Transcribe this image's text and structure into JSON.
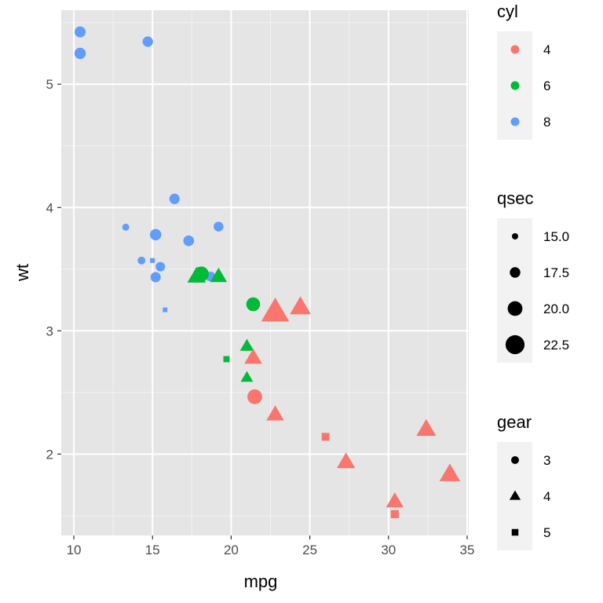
{
  "chart_data": {
    "type": "scatter",
    "xlabel": "mpg",
    "ylabel": "wt",
    "xlim": [
      9.2,
      35.1
    ],
    "ylim": [
      1.34,
      5.6
    ],
    "x_ticks": [
      10,
      15,
      20,
      25,
      30,
      35
    ],
    "y_ticks": [
      2,
      3,
      4,
      5
    ],
    "panel_background": "#e5e5e5",
    "grid": true,
    "legend_position": "right",
    "legends": [
      {
        "title": "cyl",
        "type": "color",
        "entries": [
          {
            "label": "4",
            "color": "#f8766d"
          },
          {
            "label": "6",
            "color": "#00ba38"
          },
          {
            "label": "8",
            "color": "#619cff"
          }
        ]
      },
      {
        "title": "qsec",
        "type": "size",
        "entries": [
          {
            "label": "15.0",
            "value": 15.0
          },
          {
            "label": "17.5",
            "value": 17.5
          },
          {
            "label": "20.0",
            "value": 20.0
          },
          {
            "label": "22.5",
            "value": 22.5
          }
        ]
      },
      {
        "title": "gear",
        "type": "shape",
        "entries": [
          {
            "label": "3",
            "shape": "circle"
          },
          {
            "label": "4",
            "shape": "triangle"
          },
          {
            "label": "5",
            "shape": "square"
          }
        ]
      }
    ],
    "points": [
      {
        "mpg": 21.0,
        "wt": 2.62,
        "cyl": 6,
        "gear": 4,
        "qsec": 16.46
      },
      {
        "mpg": 21.0,
        "wt": 2.875,
        "cyl": 6,
        "gear": 4,
        "qsec": 17.02
      },
      {
        "mpg": 22.8,
        "wt": 2.32,
        "cyl": 4,
        "gear": 4,
        "qsec": 18.61
      },
      {
        "mpg": 21.4,
        "wt": 3.215,
        "cyl": 6,
        "gear": 3,
        "qsec": 19.44
      },
      {
        "mpg": 18.7,
        "wt": 3.44,
        "cyl": 8,
        "gear": 3,
        "qsec": 17.02
      },
      {
        "mpg": 18.1,
        "wt": 3.46,
        "cyl": 6,
        "gear": 3,
        "qsec": 20.22
      },
      {
        "mpg": 14.3,
        "wt": 3.57,
        "cyl": 8,
        "gear": 3,
        "qsec": 15.84
      },
      {
        "mpg": 24.4,
        "wt": 3.19,
        "cyl": 4,
        "gear": 4,
        "qsec": 20.0
      },
      {
        "mpg": 22.8,
        "wt": 3.15,
        "cyl": 4,
        "gear": 4,
        "qsec": 22.9
      },
      {
        "mpg": 19.2,
        "wt": 3.44,
        "cyl": 6,
        "gear": 4,
        "qsec": 18.3
      },
      {
        "mpg": 17.8,
        "wt": 3.44,
        "cyl": 6,
        "gear": 4,
        "qsec": 18.9
      },
      {
        "mpg": 16.4,
        "wt": 4.07,
        "cyl": 8,
        "gear": 3,
        "qsec": 17.4
      },
      {
        "mpg": 17.3,
        "wt": 3.73,
        "cyl": 8,
        "gear": 3,
        "qsec": 17.6
      },
      {
        "mpg": 15.2,
        "wt": 3.78,
        "cyl": 8,
        "gear": 3,
        "qsec": 18.0
      },
      {
        "mpg": 10.4,
        "wt": 5.25,
        "cyl": 8,
        "gear": 3,
        "qsec": 17.98
      },
      {
        "mpg": 10.4,
        "wt": 5.424,
        "cyl": 8,
        "gear": 3,
        "qsec": 17.82
      },
      {
        "mpg": 14.7,
        "wt": 5.345,
        "cyl": 8,
        "gear": 3,
        "qsec": 17.42
      },
      {
        "mpg": 32.4,
        "wt": 2.2,
        "cyl": 4,
        "gear": 4,
        "qsec": 19.47
      },
      {
        "mpg": 30.4,
        "wt": 1.615,
        "cyl": 4,
        "gear": 4,
        "qsec": 18.52
      },
      {
        "mpg": 33.9,
        "wt": 1.835,
        "cyl": 4,
        "gear": 4,
        "qsec": 19.9
      },
      {
        "mpg": 21.5,
        "wt": 2.465,
        "cyl": 4,
        "gear": 3,
        "qsec": 20.01
      },
      {
        "mpg": 15.5,
        "wt": 3.52,
        "cyl": 8,
        "gear": 3,
        "qsec": 16.87
      },
      {
        "mpg": 15.2,
        "wt": 3.435,
        "cyl": 8,
        "gear": 3,
        "qsec": 17.3
      },
      {
        "mpg": 13.3,
        "wt": 3.84,
        "cyl": 8,
        "gear": 3,
        "qsec": 15.41
      },
      {
        "mpg": 19.2,
        "wt": 3.845,
        "cyl": 8,
        "gear": 3,
        "qsec": 17.05
      },
      {
        "mpg": 27.3,
        "wt": 1.935,
        "cyl": 4,
        "gear": 4,
        "qsec": 18.9
      },
      {
        "mpg": 26.0,
        "wt": 2.14,
        "cyl": 4,
        "gear": 5,
        "qsec": 16.7
      },
      {
        "mpg": 30.4,
        "wt": 1.513,
        "cyl": 4,
        "gear": 5,
        "qsec": 16.9
      },
      {
        "mpg": 15.8,
        "wt": 3.17,
        "cyl": 8,
        "gear": 5,
        "qsec": 14.5
      },
      {
        "mpg": 19.7,
        "wt": 2.77,
        "cyl": 6,
        "gear": 5,
        "qsec": 15.5
      },
      {
        "mpg": 15.0,
        "wt": 3.57,
        "cyl": 8,
        "gear": 5,
        "qsec": 14.6
      },
      {
        "mpg": 21.4,
        "wt": 2.78,
        "cyl": 4,
        "gear": 4,
        "qsec": 18.6
      }
    ]
  }
}
